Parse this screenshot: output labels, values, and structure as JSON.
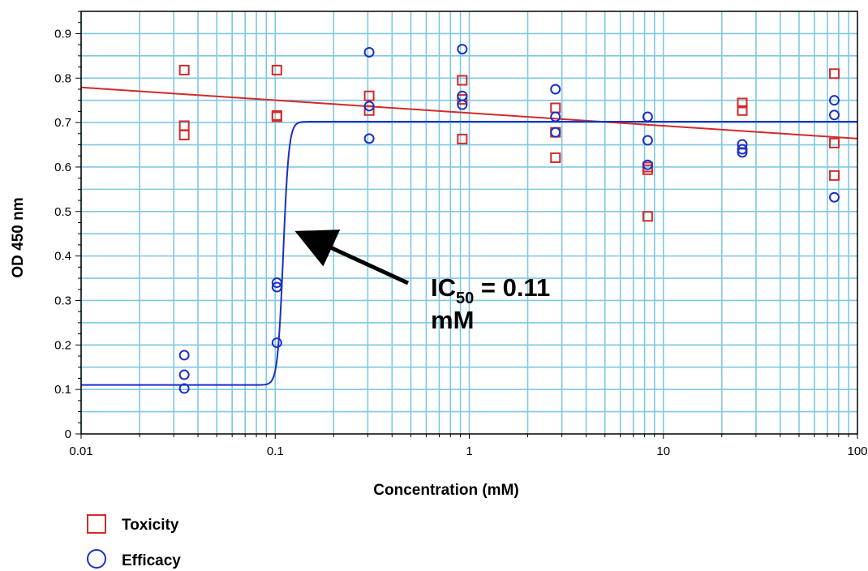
{
  "chart_data": {
    "type": "scatter",
    "xlabel": "Concentration (mM)",
    "ylabel": "OD 450 nm",
    "xscale": "log",
    "xlim": [
      0.01,
      100
    ],
    "ylim": [
      0,
      0.95
    ],
    "x_ticks": [
      0.01,
      0.1,
      1,
      10,
      100
    ],
    "x_tick_labels": [
      "0.01",
      "0.1",
      "1",
      "10",
      "100"
    ],
    "y_ticks": [
      0,
      0.1,
      0.2,
      0.3,
      0.4,
      0.5,
      0.6,
      0.7,
      0.8,
      0.9
    ],
    "y_tick_labels": [
      "0",
      "0.1",
      "0.2",
      "0.3",
      "0.4",
      "0.5",
      "0.6",
      "0.7",
      "0.8",
      "0.9"
    ],
    "grid": true,
    "legend_placement": "bottom-left",
    "series": [
      {
        "name": "Toxicity",
        "marker": "square",
        "color": "#d42a2a",
        "points": [
          [
            0.034,
            0.818
          ],
          [
            0.034,
            0.693
          ],
          [
            0.034,
            0.672
          ],
          [
            0.102,
            0.818
          ],
          [
            0.102,
            0.716
          ],
          [
            0.102,
            0.713
          ],
          [
            0.305,
            0.76
          ],
          [
            0.305,
            0.727
          ],
          [
            0.92,
            0.795
          ],
          [
            0.92,
            0.752
          ],
          [
            0.92,
            0.663
          ],
          [
            2.78,
            0.733
          ],
          [
            2.78,
            0.678
          ],
          [
            2.78,
            0.621
          ],
          [
            8.3,
            0.6
          ],
          [
            8.3,
            0.594
          ],
          [
            8.3,
            0.489
          ],
          [
            25.5,
            0.744
          ],
          [
            25.5,
            0.727
          ],
          [
            76,
            0.81
          ],
          [
            76,
            0.654
          ],
          [
            76,
            0.581
          ]
        ]
      },
      {
        "name": "Efficacy",
        "marker": "circle",
        "color": "#1c2fc4",
        "points": [
          [
            0.034,
            0.177
          ],
          [
            0.034,
            0.133
          ],
          [
            0.034,
            0.102
          ],
          [
            0.102,
            0.34
          ],
          [
            0.102,
            0.33
          ],
          [
            0.102,
            0.205
          ],
          [
            0.305,
            0.858
          ],
          [
            0.305,
            0.737
          ],
          [
            0.305,
            0.664
          ],
          [
            0.92,
            0.865
          ],
          [
            0.92,
            0.76
          ],
          [
            0.92,
            0.74
          ],
          [
            2.78,
            0.775
          ],
          [
            2.78,
            0.713
          ],
          [
            2.78,
            0.678
          ],
          [
            8.3,
            0.713
          ],
          [
            8.3,
            0.66
          ],
          [
            8.3,
            0.605
          ],
          [
            25.5,
            0.651
          ],
          [
            25.5,
            0.64
          ],
          [
            25.5,
            0.633
          ],
          [
            76,
            0.75
          ],
          [
            76,
            0.717
          ],
          [
            76,
            0.532
          ]
        ]
      }
    ],
    "fit_curves": [
      {
        "series": "Toxicity",
        "model": "log-linear",
        "y_at_xmin": 0.779,
        "y_at_xmax": 0.664,
        "color": "#d42a2a"
      },
      {
        "series": "Efficacy",
        "model": "sigmoid",
        "bottom": 0.11,
        "top": 0.702,
        "ic50": 0.11,
        "hill": 30,
        "color": "#1c2fc4"
      }
    ],
    "annotation": {
      "text_main": "IC",
      "text_sub": "50",
      "text_rest": " = 0.11",
      "text_line2": "mM",
      "arrow_target": [
        0.11,
        0.455
      ]
    },
    "legend": [
      {
        "label": "Toxicity",
        "marker": "square",
        "color": "#d42a2a"
      },
      {
        "label": "Efficacy",
        "marker": "circle",
        "color": "#1c2fc4"
      }
    ]
  }
}
